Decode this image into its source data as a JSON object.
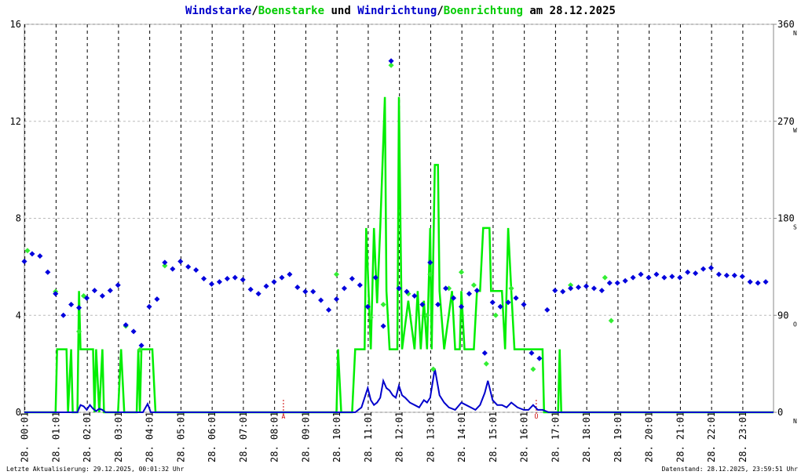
{
  "chart_data": {
    "type": "line",
    "title_joiners": [
      "/",
      " und ",
      "/",
      " am 28.12.2025"
    ],
    "footer_left": "Letzte Aktualisierung: 29.12.2025, 00:01:32 Uhr",
    "footer_right": "Datenstand: 28.12.2025, 23:59:51 Uhr",
    "xlim": [
      0,
      24
    ],
    "xticks": [
      {
        "value": 0.0167,
        "label": "28. 00:01"
      },
      {
        "value": 1.0167,
        "label": "28. 01:01"
      },
      {
        "value": 2.0167,
        "label": "28. 02:01"
      },
      {
        "value": 3.0167,
        "label": "28. 03:01"
      },
      {
        "value": 4.0167,
        "label": "28. 04:01"
      },
      {
        "value": 5.0167,
        "label": "28. 05:01"
      },
      {
        "value": 6.0167,
        "label": "28. 06:01"
      },
      {
        "value": 7.0167,
        "label": "28. 07:01"
      },
      {
        "value": 8.0167,
        "label": "28. 08:01"
      },
      {
        "value": 9.0167,
        "label": "28. 09:01"
      },
      {
        "value": 10.0167,
        "label": "28. 10:01"
      },
      {
        "value": 11.0167,
        "label": "28. 11:01"
      },
      {
        "value": 12.0167,
        "label": "28. 12:01"
      },
      {
        "value": 13.0167,
        "label": "28. 13:01"
      },
      {
        "value": 14.0167,
        "label": "28. 14:01"
      },
      {
        "value": 15.0167,
        "label": "28. 15:01"
      },
      {
        "value": 16.0167,
        "label": "28. 16:01"
      },
      {
        "value": 17.0167,
        "label": "28. 17:01"
      },
      {
        "value": 18.0167,
        "label": "28. 18:01"
      },
      {
        "value": 19.0167,
        "label": "28. 19:01"
      },
      {
        "value": 20.0167,
        "label": "28. 20:01"
      },
      {
        "value": 21.0167,
        "label": "28. 21:01"
      },
      {
        "value": 22.0167,
        "label": "28. 22:01"
      },
      {
        "value": 23.0167,
        "label": "28. 23:01"
      }
    ],
    "ylim": [
      0,
      16
    ],
    "yticks": [
      0,
      4,
      8,
      12,
      16
    ],
    "y2lim": [
      0,
      360
    ],
    "y2ticks": [
      0,
      90,
      180,
      270,
      360
    ],
    "y2tick_letters": [
      "N",
      "O",
      "S",
      "W",
      "N"
    ],
    "grid": true,
    "annotations": [
      {
        "label": "A",
        "x": 8.3
      },
      {
        "label": "U",
        "x": 16.4
      }
    ],
    "series": [
      {
        "name": "Windstarke",
        "color": "#0000cc",
        "style": "line",
        "x": [
          0,
          1.7,
          1.8,
          1.9,
          2.0,
          2.1,
          2.2,
          2.3,
          2.4,
          2.5,
          2.6,
          3.8,
          3.95,
          4.05,
          10.6,
          10.8,
          11.0,
          11.1,
          11.2,
          11.3,
          11.4,
          11.5,
          11.6,
          11.7,
          11.8,
          11.9,
          12.0,
          12.1,
          12.2,
          12.35,
          12.5,
          12.65,
          12.8,
          12.9,
          13.0,
          13.15,
          13.3,
          13.45,
          13.6,
          13.8,
          14.0,
          14.15,
          14.3,
          14.45,
          14.6,
          14.75,
          14.85,
          15.0,
          15.15,
          15.3,
          15.45,
          15.6,
          15.8,
          16.0,
          16.15,
          16.3,
          16.45,
          16.6,
          16.8,
          24
        ],
        "values": [
          0,
          0,
          0.3,
          0.25,
          0.1,
          0.3,
          0.15,
          0.05,
          0.15,
          0.1,
          0,
          0,
          0.35,
          0,
          0,
          0.2,
          1.0,
          0.5,
          0.3,
          0.4,
          0.6,
          1.3,
          1.0,
          0.9,
          0.7,
          0.6,
          1.1,
          0.7,
          0.6,
          0.4,
          0.3,
          0.2,
          0.5,
          0.4,
          0.6,
          1.8,
          0.7,
          0.4,
          0.2,
          0.1,
          0.4,
          0.3,
          0.2,
          0.1,
          0.3,
          0.8,
          1.3,
          0.5,
          0.3,
          0.3,
          0.2,
          0.4,
          0.2,
          0.1,
          0.1,
          0.3,
          0.1,
          0.1,
          0,
          0
        ]
      },
      {
        "name": "Boenstarke",
        "color": "#00ee00",
        "style": "line",
        "x": [
          0,
          1.0,
          1.05,
          1.35,
          1.4,
          1.5,
          1.55,
          1.7,
          1.75,
          1.8,
          2.2,
          2.25,
          2.3,
          2.4,
          2.5,
          2.55,
          3.0,
          3.1,
          3.2,
          3.6,
          3.65,
          3.7,
          3.75,
          4.1,
          4.2,
          10.0,
          10.05,
          10.15,
          10.5,
          10.6,
          10.9,
          10.95,
          11.1,
          11.2,
          11.3,
          11.4,
          11.55,
          11.6,
          11.7,
          11.95,
          12.0,
          12.05,
          12.1,
          12.3,
          12.5,
          12.6,
          12.7,
          12.8,
          12.9,
          13.0,
          13.05,
          13.15,
          13.25,
          13.3,
          13.45,
          13.7,
          13.8,
          13.95,
          14.0,
          14.1,
          14.4,
          14.5,
          14.6,
          14.7,
          14.9,
          14.95,
          15.3,
          15.4,
          15.5,
          15.6,
          15.7,
          16.0,
          16.6,
          16.65,
          17.1,
          17.15,
          17.2,
          24
        ],
        "values": [
          0,
          0,
          2.6,
          2.6,
          0,
          2.6,
          0,
          0,
          5.0,
          2.6,
          2.6,
          0,
          2.6,
          0,
          2.6,
          0,
          0,
          2.6,
          0,
          0,
          2.6,
          0,
          2.6,
          2.6,
          0,
          0,
          2.6,
          0,
          0,
          2.6,
          2.6,
          7.6,
          2.6,
          7.6,
          4.5,
          7.6,
          13,
          5,
          2.6,
          2.6,
          13,
          7.6,
          2.6,
          4.6,
          2.6,
          5,
          2.6,
          4.6,
          2.6,
          7.6,
          2.6,
          10.2,
          10.2,
          5,
          2.6,
          5,
          2.6,
          2.6,
          5,
          2.6,
          2.6,
          5,
          5,
          7.6,
          7.6,
          5,
          5,
          2.6,
          7.6,
          5,
          2.6,
          2.6,
          2.6,
          0,
          0,
          2.6,
          0,
          0
        ]
      },
      {
        "name": "Windrichtung",
        "color": "#0000dd",
        "style": "points",
        "axis": "y2",
        "x": [
          0,
          0.25,
          0.5,
          0.75,
          1,
          1.25,
          1.5,
          1.75,
          2,
          2.25,
          2.5,
          2.75,
          3,
          3.25,
          3.5,
          3.75,
          4,
          4.25,
          4.5,
          4.75,
          5,
          5.25,
          5.5,
          5.75,
          6,
          6.25,
          6.5,
          6.75,
          7,
          7.25,
          7.5,
          7.75,
          8,
          8.25,
          8.5,
          8.75,
          9,
          9.25,
          9.5,
          9.75,
          10,
          10.25,
          10.5,
          10.75,
          11,
          11.25,
          11.5,
          11.75,
          12,
          12.25,
          12.5,
          12.75,
          13,
          13.25,
          13.5,
          13.75,
          14,
          14.25,
          14.5,
          14.75,
          15,
          15.25,
          15.5,
          15.75,
          16,
          16.25,
          16.5,
          16.75,
          17,
          17.25,
          17.5,
          17.75,
          18,
          18.25,
          18.5,
          18.75,
          19,
          19.25,
          19.5,
          19.75,
          20,
          20.25,
          20.5,
          20.75,
          21,
          21.25,
          21.5,
          21.75,
          22,
          22.25,
          22.5,
          22.75,
          23,
          23.25,
          23.5,
          23.75
        ],
        "values": [
          140,
          147,
          145,
          130,
          110,
          90,
          100,
          97,
          106,
          113,
          108,
          113,
          118,
          81,
          75,
          62,
          98,
          105,
          139,
          133,
          140,
          135,
          132,
          124,
          119,
          121,
          124,
          125,
          123,
          114,
          110,
          117,
          121,
          125,
          128,
          116,
          112,
          112,
          104,
          95,
          105,
          115,
          124,
          118,
          98,
          125,
          80,
          326,
          115,
          112,
          108,
          100,
          139,
          100,
          115,
          106,
          98,
          110,
          113,
          55,
          102,
          98,
          102,
          106,
          100,
          55,
          50,
          95,
          113,
          112,
          115,
          116,
          117,
          115,
          113,
          120,
          120,
          122,
          125,
          128,
          125,
          128,
          125,
          126,
          125,
          130,
          129,
          133,
          134,
          128,
          127,
          127,
          126,
          121,
          120,
          121
        ]
      },
      {
        "name": "Boenrichtung",
        "color": "#33ee33",
        "style": "points",
        "axis": "y2",
        "x": [
          0.1,
          1.0,
          1.75,
          1.9,
          3.25,
          3.7,
          4.5,
          10.0,
          11.1,
          11.5,
          11.75,
          12.3,
          12.9,
          13.0,
          13.1,
          13.6,
          14.0,
          14.4,
          14.8,
          15.1,
          15.6,
          16.3,
          17.5,
          18.6,
          18.8
        ],
        "values": [
          150,
          112,
          75,
          108,
          80,
          58,
          136,
          128,
          88,
          100,
          322,
          110,
          90,
          128,
          40,
          115,
          130,
          118,
          45,
          90,
          115,
          40,
          118,
          125,
          85
        ]
      }
    ]
  }
}
